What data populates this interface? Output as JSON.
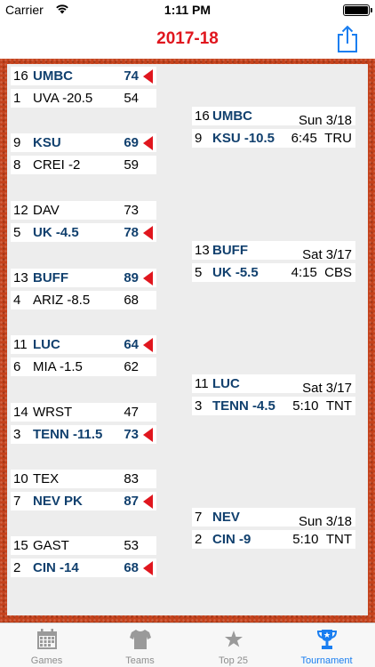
{
  "status": {
    "carrier": "Carrier",
    "time": "1:11 PM"
  },
  "nav": {
    "title": "2017-18"
  },
  "round1": [
    {
      "seed": "16",
      "team": "UMBC",
      "score": "74",
      "winner": true
    },
    {
      "seed": "1",
      "team": "UVA -20.5",
      "score": "54",
      "winner": false
    },
    {
      "seed": "9",
      "team": "KSU",
      "score": "69",
      "winner": true
    },
    {
      "seed": "8",
      "team": "CREI -2",
      "score": "59",
      "winner": false
    },
    {
      "seed": "12",
      "team": "DAV",
      "score": "73",
      "winner": false
    },
    {
      "seed": "5",
      "team": "UK -4.5",
      "score": "78",
      "winner": true
    },
    {
      "seed": "13",
      "team": "BUFF",
      "score": "89",
      "winner": true
    },
    {
      "seed": "4",
      "team": "ARIZ -8.5",
      "score": "68",
      "winner": false
    },
    {
      "seed": "11",
      "team": "LUC",
      "score": "64",
      "winner": true
    },
    {
      "seed": "6",
      "team": "MIA -1.5",
      "score": "62",
      "winner": false
    },
    {
      "seed": "14",
      "team": "WRST",
      "score": "47",
      "winner": false
    },
    {
      "seed": "3",
      "team": "TENN -11.5",
      "score": "73",
      "winner": true
    },
    {
      "seed": "10",
      "team": "TEX",
      "score": "83",
      "winner": false
    },
    {
      "seed": "7",
      "team": "NEV PK",
      "score": "87",
      "winner": true
    },
    {
      "seed": "15",
      "team": "GAST",
      "score": "53",
      "winner": false
    },
    {
      "seed": "2",
      "team": "CIN -14",
      "score": "68",
      "winner": true
    }
  ],
  "round2": [
    {
      "top": {
        "seed": "16",
        "team": "UMBC"
      },
      "bottom": {
        "seed": "9",
        "team": "KSU -10.5"
      },
      "day": "Sun 3/18",
      "time": "6:45",
      "network": "TRU"
    },
    {
      "top": {
        "seed": "13",
        "team": "BUFF"
      },
      "bottom": {
        "seed": "5",
        "team": "UK -5.5"
      },
      "day": "Sat 3/17",
      "time": "4:15",
      "network": "CBS"
    },
    {
      "top": {
        "seed": "11",
        "team": "LUC"
      },
      "bottom": {
        "seed": "3",
        "team": "TENN -4.5"
      },
      "day": "Sat 3/17",
      "time": "5:10",
      "network": "TNT"
    },
    {
      "top": {
        "seed": "7",
        "team": "NEV"
      },
      "bottom": {
        "seed": "2",
        "team": "CIN -9"
      },
      "day": "Sun 3/18",
      "time": "5:10",
      "network": "TNT"
    }
  ],
  "tabs": [
    {
      "label": "Games",
      "icon": "calendar-icon",
      "active": false
    },
    {
      "label": "Teams",
      "icon": "jersey-icon",
      "active": false
    },
    {
      "label": "Top 25",
      "icon": "star-icon",
      "active": false
    },
    {
      "label": "Tournament",
      "icon": "trophy-icon",
      "active": true
    }
  ],
  "colors": {
    "accent": "#e0161e",
    "winner_text": "#11406e",
    "tab_active": "#1a7ef0",
    "board": "#c4421c"
  }
}
